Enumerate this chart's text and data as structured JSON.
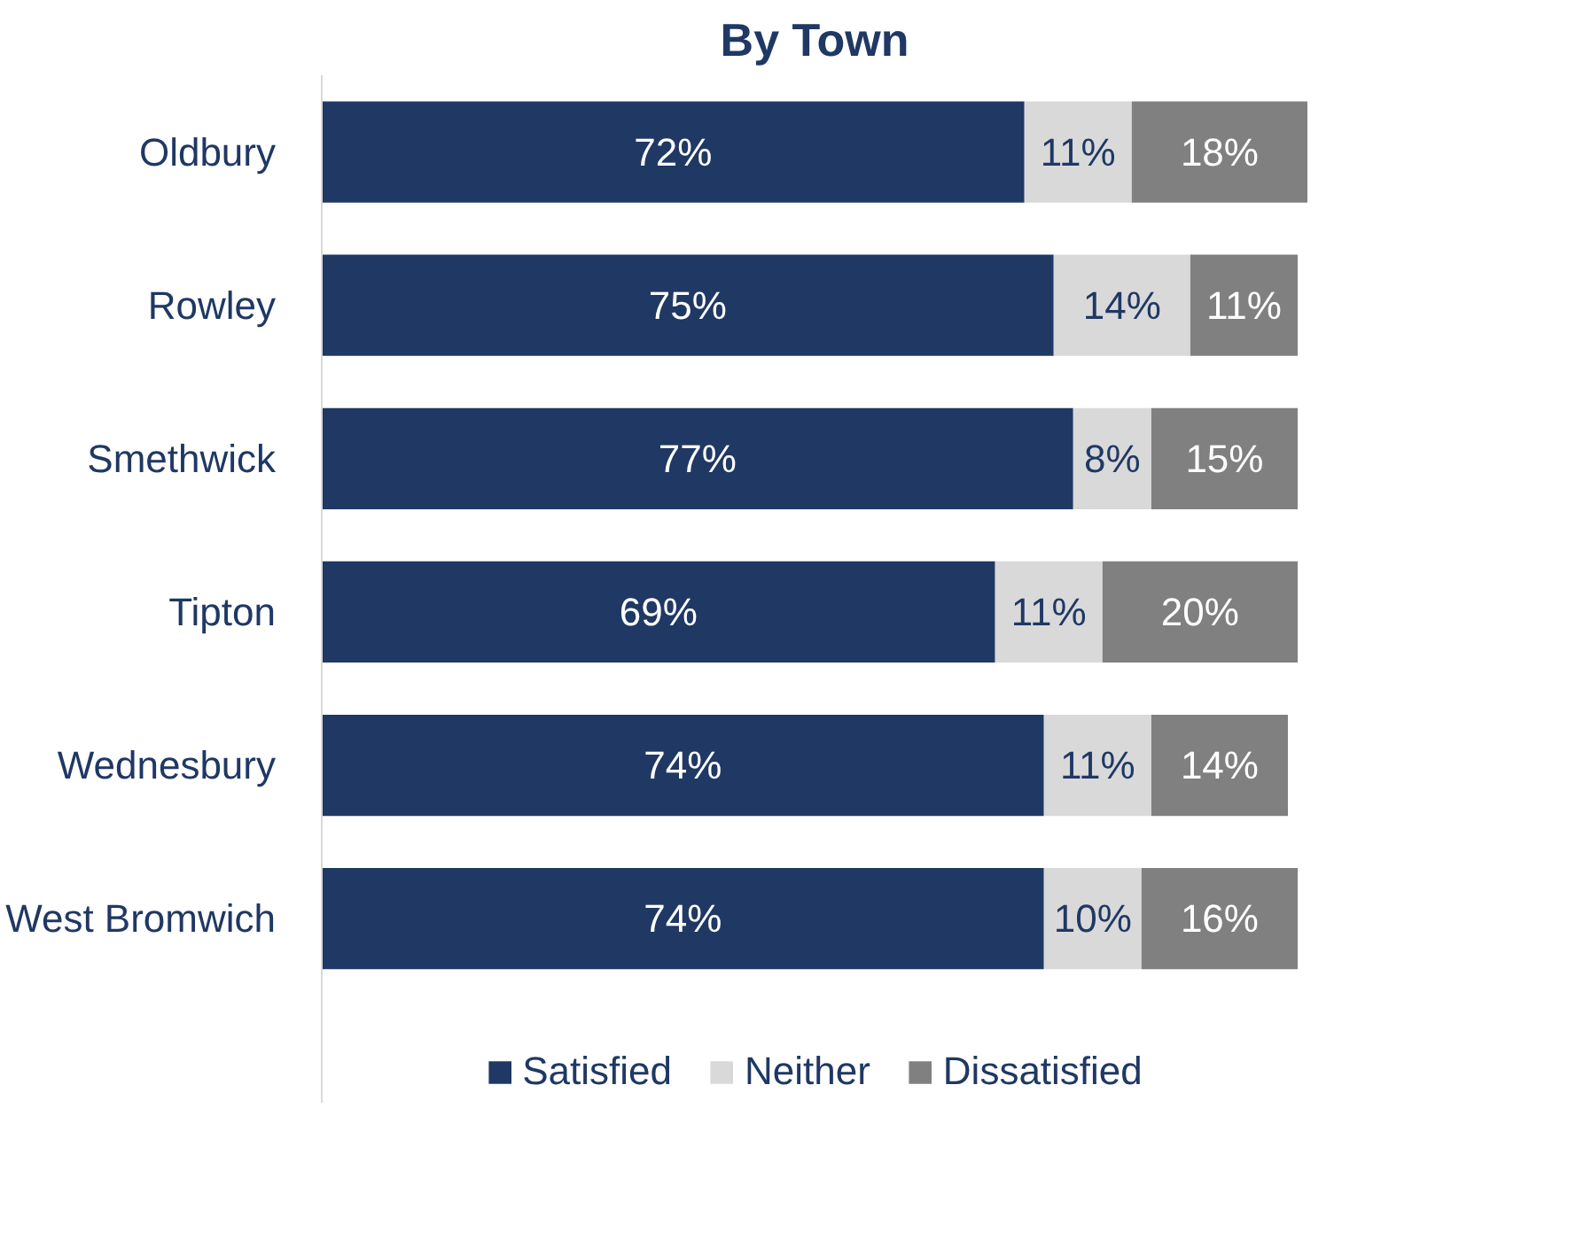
{
  "chart_data": {
    "type": "bar",
    "orientation": "horizontal",
    "stacked": true,
    "title": "By Town",
    "categories": [
      "Oldbury",
      "Rowley",
      "Smethwick",
      "Tipton",
      "Wednesbury",
      "West Bromwich"
    ],
    "series": [
      {
        "name": "Satisfied",
        "color": "#203864",
        "values": [
          72,
          75,
          77,
          69,
          74,
          74
        ],
        "value_labels": [
          "72%",
          "75%",
          "77%",
          "69%",
          "74%",
          "74%"
        ]
      },
      {
        "name": "Neither",
        "color": "#d9d9d9",
        "values": [
          11,
          14,
          8,
          11,
          11,
          10
        ],
        "value_labels": [
          "11%",
          "14%",
          "8%",
          "11%",
          "11%",
          "10%"
        ]
      },
      {
        "name": "Dissatisfied",
        "color": "#808080",
        "values": [
          18,
          11,
          15,
          20,
          14,
          16
        ],
        "value_labels": [
          "18%",
          "11%",
          "15%",
          "20%",
          "14%",
          "16%"
        ]
      }
    ],
    "legend": "bottom",
    "grid": false
  }
}
